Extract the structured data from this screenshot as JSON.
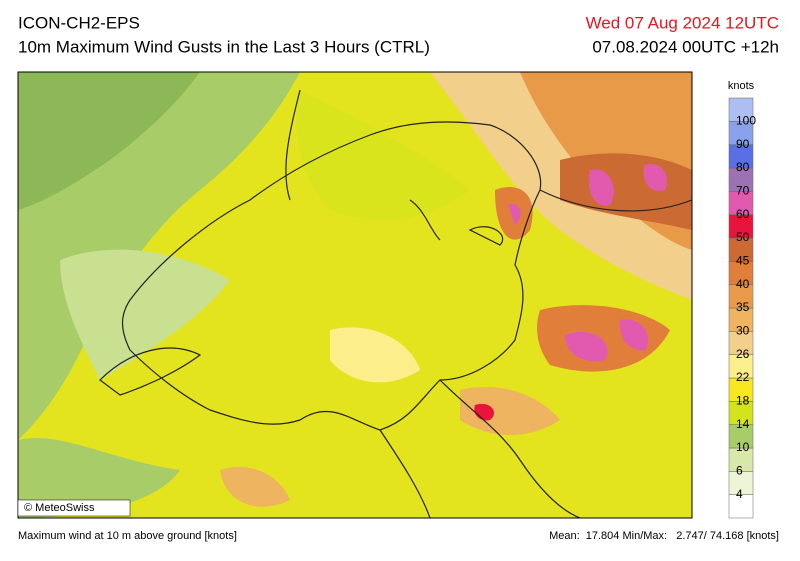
{
  "header": {
    "model": "ICON-CH2-EPS",
    "title": "10m Maximum Wind Gusts in the Last 3 Hours (CTRL)",
    "valid_time": "Wed 07 Aug 2024 12UTC",
    "run": "07.08.2024 00UTC +12h"
  },
  "legend": {
    "unit": "knots",
    "levels": [
      4,
      6,
      10,
      14,
      18,
      22,
      26,
      30,
      35,
      40,
      45,
      50,
      60,
      70,
      80,
      90,
      100
    ],
    "colors": [
      "#ffffff",
      "#eef4d6",
      "#d7e8a8",
      "#a8cc68",
      "#d4e41c",
      "#f8e61e",
      "#fcee8a",
      "#f2d08c",
      "#eeb460",
      "#e89a48",
      "#e07e3a",
      "#cc6a34",
      "#e8143c",
      "#e25ab0",
      "#9c72b4",
      "#5a6ee6",
      "#8aa2ee",
      "#aebef2"
    ]
  },
  "map": {
    "credit": "© MeteoSwiss"
  },
  "footer": {
    "description": "Maximum wind at 10 m above ground [knots]",
    "stats": "Mean:  17.804 Min/Max:   2.747/ 74.168 [knots]"
  }
}
